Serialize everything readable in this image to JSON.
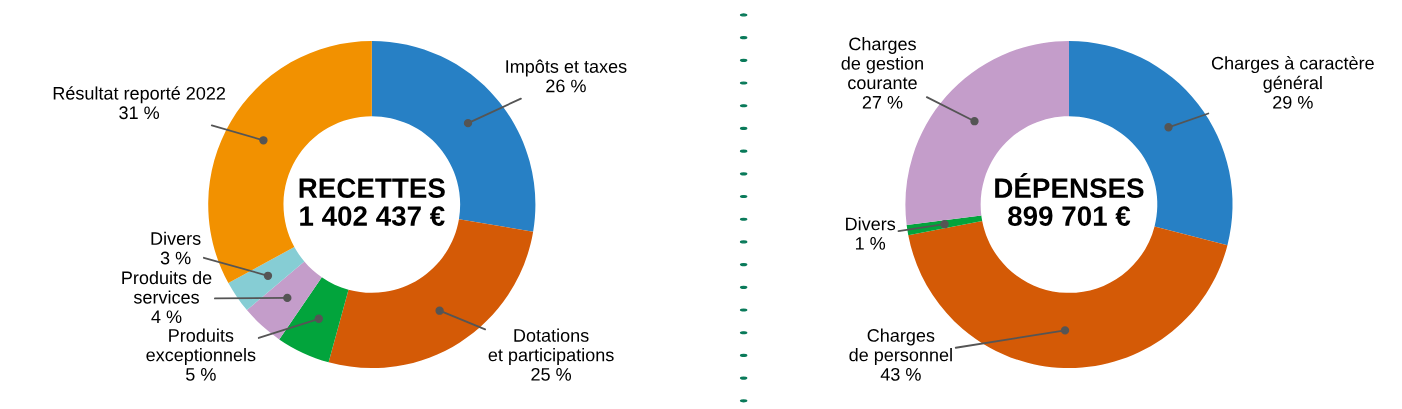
{
  "chart_data": [
    {
      "type": "donut",
      "title": "RECETTES\n1 402 437 €",
      "categories": [
        "Impôts et taxes",
        "Dotations\net participations",
        "Produits\nexceptionnels",
        "Produits de\nservices",
        "Divers",
        "Résultat reporté 2022"
      ],
      "values": [
        26,
        25,
        5,
        4,
        3,
        31
      ],
      "colors": [
        "#2780c5",
        "#d45a06",
        "#02a43c",
        "#c49dca",
        "#86cdd4",
        "#f29100"
      ],
      "value_labels": [
        "26 %",
        "25 %",
        "5 %",
        "4 %",
        "3 %",
        "31 %"
      ]
    },
    {
      "type": "donut",
      "title": "DÉPENSES\n899 701 €",
      "categories": [
        "Charges à caractère\ngénéral",
        "Charges\nde personnel",
        "Divers",
        "Charges\nde gestion\ncourante"
      ],
      "values": [
        29,
        43,
        1,
        27
      ],
      "colors": [
        "#2780c5",
        "#d45a06",
        "#02a43c",
        "#c49dca"
      ],
      "value_labels": [
        "29 %",
        "43 %",
        "1 %",
        "27 %"
      ]
    }
  ]
}
